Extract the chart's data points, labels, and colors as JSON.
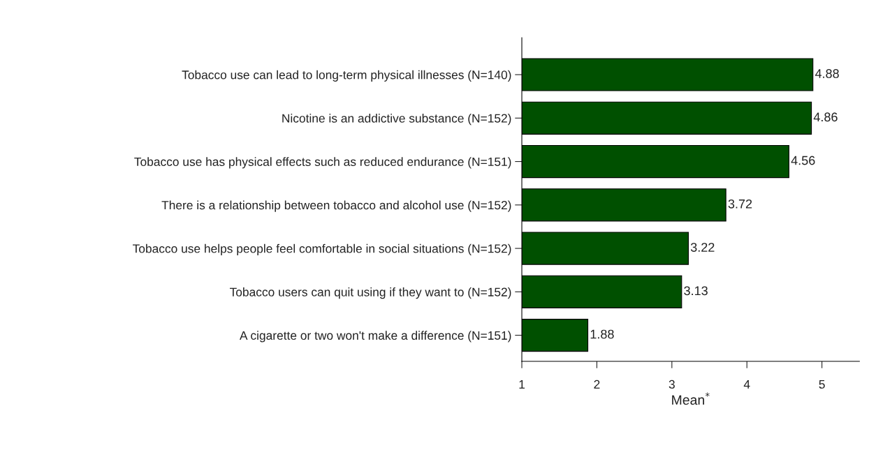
{
  "chart_data": {
    "type": "bar",
    "orientation": "horizontal",
    "xlabel": "Mean$^{*}$",
    "categories": [
      "Tobacco use can lead to long-term physical illnesses (N=140)",
      "Nicotine is an addictive substance (N=152)",
      "Tobacco use has physical effects such as reduced endurance (N=151)",
      "There is a relationship between tobacco and alcohol use (N=152)",
      "Tobacco use helps people feel comfortable in social situations (N=152)",
      "Tobacco users can quit using if they want to (N=152)",
      "A cigarette or two won't make a difference (N=151)"
    ],
    "values": [
      4.88,
      4.86,
      4.56,
      3.72,
      3.22,
      3.13,
      1.88
    ],
    "color": "#005000",
    "xlim": [
      1,
      5.5
    ],
    "xticks": [
      1,
      2,
      3,
      4,
      5
    ],
    "data_labels": true,
    "grid": false,
    "legend": false
  }
}
